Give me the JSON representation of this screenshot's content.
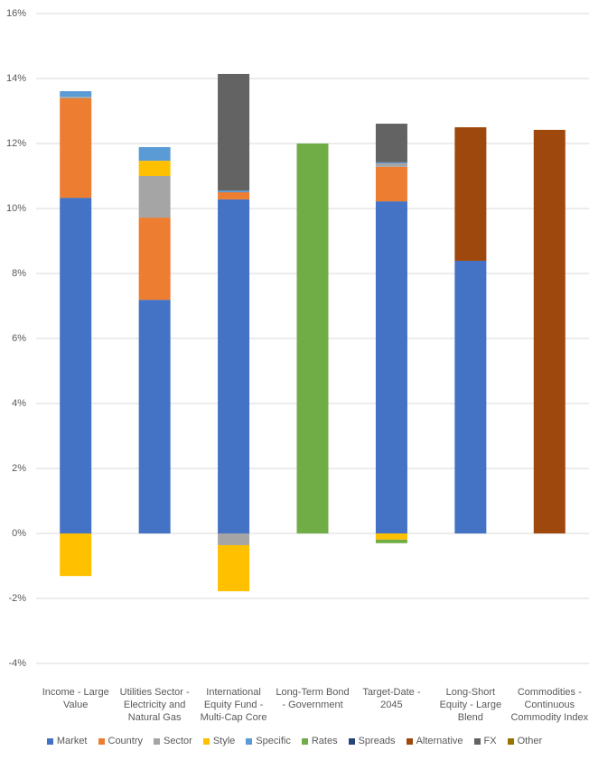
{
  "chart_data": {
    "type": "stacked-bar",
    "categories": [
      "Income - Large Value",
      "Utilities Sector - Electricity and Natural Gas",
      "International Equity Fund - Multi-Cap Core",
      "Long-Term Bond - Government",
      "Target-Date - 2045",
      "Long-Short Equity - Large Blend",
      "Commodities - Continuous Commodity Index"
    ],
    "series": [
      {
        "name": "Market",
        "color": "#4472c4",
        "values": [
          10.33,
          7.19,
          10.28,
          0,
          10.22,
          8.39,
          0
        ]
      },
      {
        "name": "Country",
        "color": "#ed7d31",
        "values": [
          3.06,
          2.53,
          0.22,
          0,
          1.06,
          0,
          0
        ]
      },
      {
        "name": "Sector",
        "color": "#a5a5a5",
        "values": [
          0.05,
          1.28,
          -0.36,
          0,
          0.11,
          0,
          0
        ]
      },
      {
        "name": "Style",
        "color": "#ffc000",
        "values": [
          -1.31,
          0.47,
          -1.42,
          0,
          -0.19,
          0,
          0
        ]
      },
      {
        "name": "Specific",
        "color": "#5b9bd5",
        "values": [
          0.17,
          0.42,
          0.05,
          0,
          0.03,
          0,
          0
        ]
      },
      {
        "name": "Rates",
        "color": "#70ad47",
        "values": [
          0,
          0,
          0,
          12.0,
          -0.11,
          0,
          0
        ]
      },
      {
        "name": "Spreads",
        "color": "#264478",
        "values": [
          0,
          0,
          0,
          0,
          0,
          0,
          0
        ]
      },
      {
        "name": "Alternative",
        "color": "#9e480e",
        "values": [
          0,
          0,
          0,
          0,
          0,
          4.11,
          12.42
        ]
      },
      {
        "name": "FX",
        "color": "#636363",
        "values": [
          0,
          0,
          3.59,
          0,
          1.19,
          0,
          0
        ]
      },
      {
        "name": "Other",
        "color": "#997300",
        "values": [
          0,
          0,
          0,
          0,
          0,
          0,
          0
        ]
      }
    ],
    "ylim": [
      -4,
      16
    ],
    "yticks": [
      {
        "value": -4,
        "label": "-4%"
      },
      {
        "value": -2,
        "label": "-2%"
      },
      {
        "value": 0,
        "label": "0%"
      },
      {
        "value": 2,
        "label": "2%"
      },
      {
        "value": 4,
        "label": "4%"
      },
      {
        "value": 6,
        "label": "6%"
      },
      {
        "value": 8,
        "label": "8%"
      },
      {
        "value": 10,
        "label": "10%"
      },
      {
        "value": 12,
        "label": "12%"
      },
      {
        "value": 14,
        "label": "14%"
      },
      {
        "value": 16,
        "label": "16%"
      }
    ],
    "grid": true
  }
}
